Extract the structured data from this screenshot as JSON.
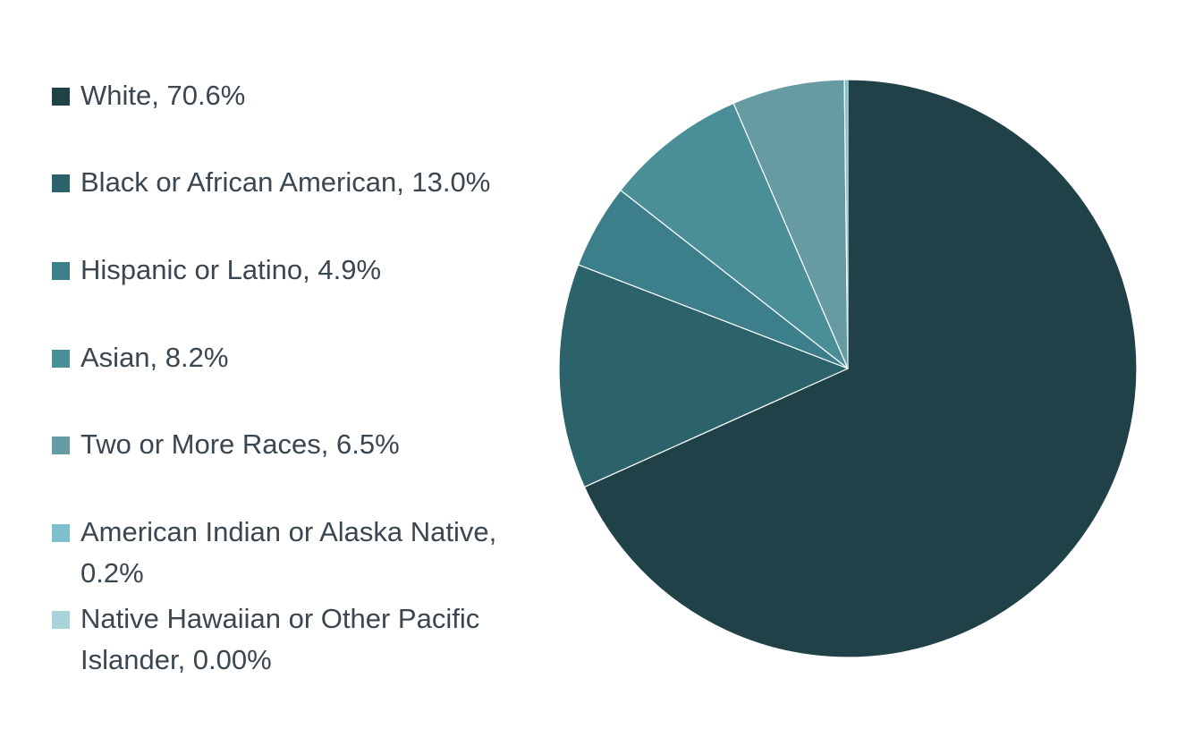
{
  "chart_data": {
    "type": "pie",
    "slices": [
      {
        "label": "White, 70.6%",
        "category": "White",
        "value": 70.6,
        "color": "#204147"
      },
      {
        "label": "Black or African American, 13.0%",
        "category": "Black or African American",
        "value": 13.0,
        "color": "#2c636a"
      },
      {
        "label": "Hispanic or Latino, 4.9%",
        "category": "Hispanic or Latino",
        "value": 4.9,
        "color": "#3c7f8b"
      },
      {
        "label": "Asian, 8.2%",
        "category": "Asian",
        "value": 8.2,
        "color": "#4a8f98"
      },
      {
        "label": "Two or More Races, 6.5%",
        "category": "Two or More Races",
        "value": 6.5,
        "color": "#669ba3"
      },
      {
        "label": "American Indian or Alaska Native, 0.2%",
        "category": "American Indian or Alaska Native",
        "value": 0.2,
        "color": "#7fbfcb"
      },
      {
        "label": "Native Hawaiian or Other Pacific Islander, 0.00%",
        "category": "Native Hawaiian or Other Pacific Islander",
        "value": 0.0,
        "color": "#a8d3da"
      }
    ],
    "legend_position": "left"
  }
}
